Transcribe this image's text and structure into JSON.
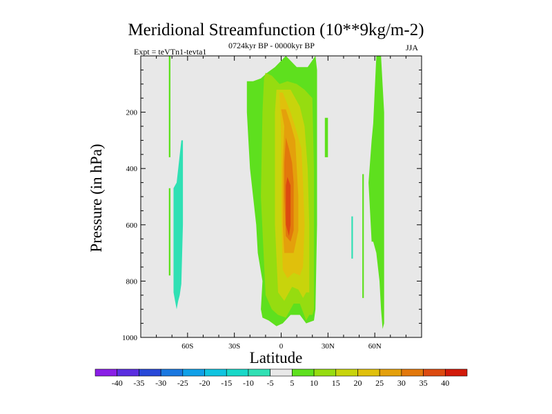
{
  "chart_data": {
    "type": "contour",
    "title": "Meridional Streamfunction (10**9kg/m-2)",
    "subtitle_left": "Expt = teVTn1-tevta1",
    "subtitle_center": "0724kyr BP - 0000kyr BP",
    "subtitle_right": "JJA",
    "xlabel": "Latitude",
    "ylabel": "Pressure (in hPa)",
    "xlim": [
      -90,
      90
    ],
    "ylim": [
      1000,
      0
    ],
    "x_ticks": [
      {
        "value": -60,
        "label": "60S"
      },
      {
        "value": -30,
        "label": "30S"
      },
      {
        "value": 0,
        "label": "0"
      },
      {
        "value": 30,
        "label": "30N"
      },
      {
        "value": 60,
        "label": "60N"
      }
    ],
    "y_ticks": [
      200,
      400,
      600,
      800,
      1000
    ],
    "colorbar": {
      "levels": [
        -40,
        -35,
        -30,
        -25,
        -20,
        -15,
        -10,
        -5,
        5,
        10,
        15,
        20,
        25,
        30,
        35,
        40
      ],
      "colors": [
        "#8a1ee6",
        "#5a2ee0",
        "#2848d8",
        "#1a78e0",
        "#10a0e8",
        "#10c4e0",
        "#18d8c8",
        "#30e0b4",
        "#e8e8e8",
        "#5ee01e",
        "#96dc10",
        "#c8d40c",
        "#e0c00c",
        "#e4a00c",
        "#e2780c",
        "#dc4a10",
        "#d21a0a"
      ]
    },
    "background_color": "#e8e8e8",
    "regions": [
      {
        "level": "-10",
        "color": "#30e0b4",
        "lat": [
          -68,
          -67,
          -67,
          -68
        ],
        "p": [
          800,
          800,
          760,
          760
        ]
      },
      {
        "level": "-10",
        "color": "#30e0b4",
        "lat": [
          -69,
          -68,
          -67,
          -66,
          -65,
          -64,
          -63,
          -63,
          -64,
          -66,
          -67,
          -69
        ],
        "p": [
          840,
          870,
          900,
          870,
          850,
          810,
          600,
          300,
          300,
          400,
          450,
          470
        ]
      },
      {
        "level": "-10",
        "color": "#30e0b4",
        "lat": [
          45,
          46,
          46,
          45
        ],
        "p": [
          570,
          570,
          720,
          720
        ]
      },
      {
        "level": "5",
        "color": "#5ee01e",
        "lat": [
          -72,
          -71,
          -71,
          -72
        ],
        "p": [
          0,
          0,
          360,
          360
        ]
      },
      {
        "level": "5",
        "color": "#5ee01e",
        "lat": [
          -72,
          -71,
          -71,
          -72
        ],
        "p": [
          470,
          470,
          780,
          780
        ]
      },
      {
        "level": "5",
        "color": "#5ee01e",
        "lat": [
          -22,
          -18,
          -13,
          -9,
          -4,
          3,
          10,
          17,
          22,
          23,
          23,
          22,
          21,
          16,
          12,
          6,
          1,
          -3,
          -8,
          -12,
          -13,
          -12,
          -15,
          -16,
          -18,
          -20,
          -21,
          -22,
          -22
        ],
        "p": [
          90,
          90,
          80,
          60,
          40,
          0,
          40,
          40,
          0,
          50,
          600,
          900,
          940,
          950,
          920,
          920,
          950,
          960,
          940,
          930,
          900,
          800,
          700,
          600,
          500,
          400,
          300,
          200,
          90
        ]
      },
      {
        "level": "5",
        "color": "#5ee01e",
        "lat": [
          28,
          30,
          30,
          28
        ],
        "p": [
          220,
          220,
          360,
          360
        ]
      },
      {
        "level": "5",
        "color": "#5ee01e",
        "lat": [
          52,
          53,
          53,
          52
        ],
        "p": [
          420,
          420,
          860,
          860
        ]
      },
      {
        "level": "5",
        "color": "#5ee01e",
        "lat": [
          56,
          58,
          59,
          61,
          64,
          66,
          66,
          65,
          64,
          63,
          61,
          59,
          58,
          56
        ],
        "p": [
          450,
          300,
          240,
          0,
          0,
          200,
          950,
          970,
          900,
          800,
          700,
          660,
          660,
          450
        ]
      },
      {
        "level": "10",
        "color": "#96dc10",
        "lat": [
          -10,
          -6,
          -1,
          4,
          10,
          15,
          20,
          21,
          21,
          20,
          18,
          16,
          12,
          8,
          3,
          -2,
          -6,
          -10,
          -13,
          -12,
          -11
        ],
        "p": [
          60,
          70,
          100,
          90,
          100,
          120,
          150,
          400,
          900,
          920,
          920,
          940,
          880,
          880,
          930,
          920,
          900,
          850,
          500,
          200,
          80
        ]
      },
      {
        "level": "15",
        "color": "#c8d40c",
        "lat": [
          -3,
          0,
          6,
          12,
          15,
          17,
          18,
          18,
          16,
          14,
          11,
          7,
          2,
          -2,
          -4,
          -4
        ],
        "p": [
          120,
          120,
          120,
          180,
          250,
          400,
          600,
          840,
          840,
          860,
          830,
          820,
          870,
          840,
          600,
          200
        ]
      },
      {
        "level": "20",
        "color": "#e0c00c",
        "lat": [
          -1,
          1,
          6,
          10,
          13,
          14,
          15,
          14,
          12,
          8,
          4,
          1,
          0,
          0
        ],
        "p": [
          130,
          130,
          200,
          270,
          330,
          450,
          600,
          750,
          780,
          770,
          790,
          760,
          550,
          300
        ]
      },
      {
        "level": "25",
        "color": "#e4a00c",
        "lat": [
          0,
          3,
          6,
          9,
          10,
          11,
          11,
          8,
          5,
          2,
          1,
          1,
          2
        ],
        "p": [
          190,
          190,
          240,
          300,
          400,
          500,
          620,
          700,
          700,
          700,
          600,
          400,
          250
        ]
      },
      {
        "level": "30",
        "color": "#e2780c",
        "lat": [
          3,
          5,
          7,
          8,
          8,
          6,
          3,
          2,
          2
        ],
        "p": [
          290,
          330,
          380,
          450,
          620,
          660,
          640,
          500,
          380
        ]
      },
      {
        "level": "35",
        "color": "#dc4a10",
        "lat": [
          4,
          6,
          6,
          5,
          3,
          3
        ],
        "p": [
          430,
          460,
          600,
          640,
          600,
          460
        ]
      }
    ]
  }
}
